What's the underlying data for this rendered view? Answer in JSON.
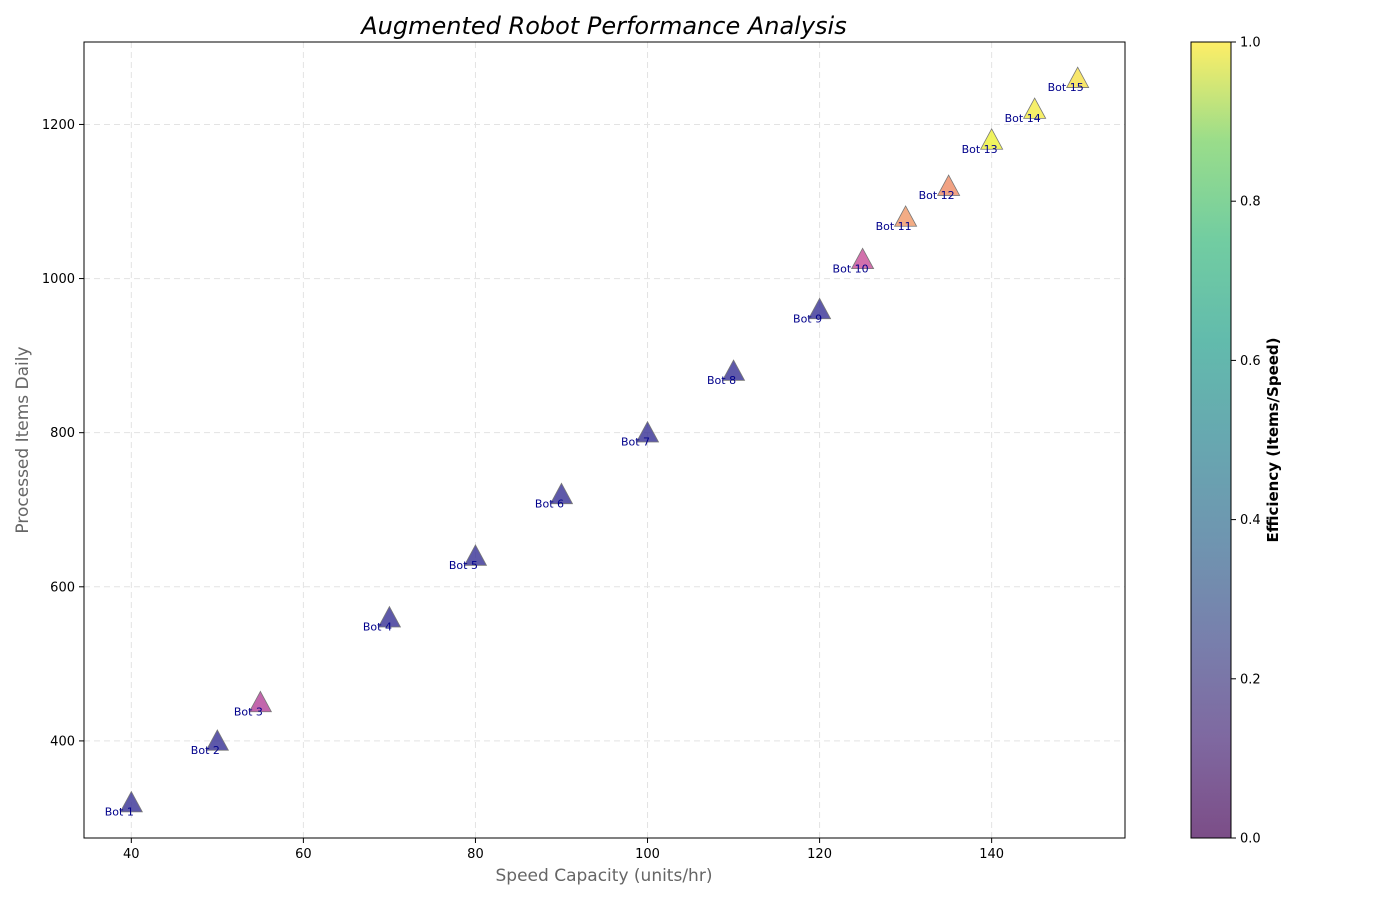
{
  "chart_data": {
    "type": "scatter",
    "title": "Augmented Robot Performance Analysis",
    "xlabel": "Speed Capacity (units/hr)",
    "ylabel": "Processed Items Daily",
    "xlim": [
      34.5,
      155.5
    ],
    "ylim": [
      274,
      1307
    ],
    "xticks": [
      40,
      60,
      80,
      100,
      120,
      140
    ],
    "yticks": [
      400,
      600,
      800,
      1000,
      1200
    ],
    "grid": true,
    "marker": "triangle",
    "points": [
      {
        "label": "Bot 1",
        "x": 40,
        "y": 320,
        "color": "#3a3596"
      },
      {
        "label": "Bot 2",
        "x": 50,
        "y": 400,
        "color": "#3a3596"
      },
      {
        "label": "Bot 3",
        "x": 55,
        "y": 450,
        "color": "#b5449a"
      },
      {
        "label": "Bot 4",
        "x": 70,
        "y": 560,
        "color": "#3a3596"
      },
      {
        "label": "Bot 5",
        "x": 80,
        "y": 640,
        "color": "#3a3596"
      },
      {
        "label": "Bot 6",
        "x": 90,
        "y": 720,
        "color": "#3a3596"
      },
      {
        "label": "Bot 7",
        "x": 100,
        "y": 800,
        "color": "#3a3596"
      },
      {
        "label": "Bot 8",
        "x": 110,
        "y": 880,
        "color": "#3a3596"
      },
      {
        "label": "Bot 9",
        "x": 120,
        "y": 960,
        "color": "#3a3596"
      },
      {
        "label": "Bot 10",
        "x": 125,
        "y": 1025,
        "color": "#c8519a"
      },
      {
        "label": "Bot 11",
        "x": 130,
        "y": 1080,
        "color": "#f09a6a"
      },
      {
        "label": "Bot 12",
        "x": 135,
        "y": 1120,
        "color": "#ee8e68"
      },
      {
        "label": "Bot 13",
        "x": 140,
        "y": 1180,
        "color": "#eef23c"
      },
      {
        "label": "Bot 14",
        "x": 145,
        "y": 1220,
        "color": "#f4ec48"
      },
      {
        "label": "Bot 15",
        "x": 150,
        "y": 1260,
        "color": "#f6e04a"
      }
    ],
    "colorbar": {
      "label": "Efficiency (Items/Speed)",
      "range": [
        0.0,
        1.0
      ],
      "ticks": [
        "0.0",
        "0.2",
        "0.4",
        "0.6",
        "0.8",
        "1.0"
      ],
      "colormap": "viridis"
    }
  }
}
